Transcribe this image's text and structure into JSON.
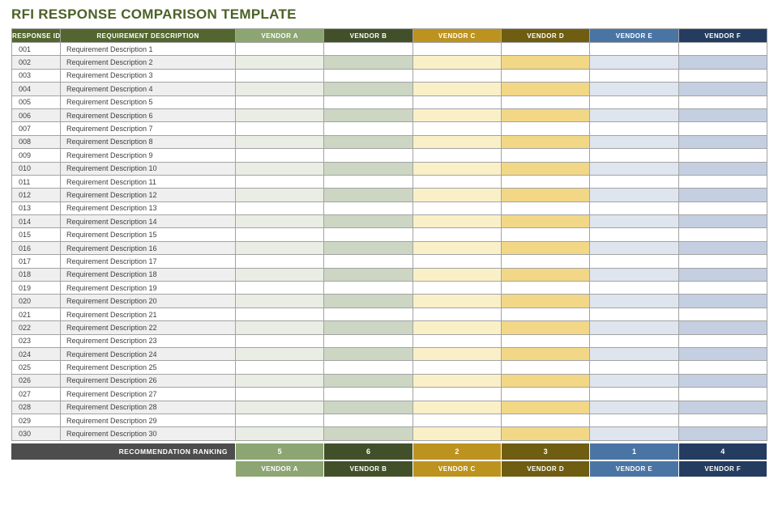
{
  "title": "RFI RESPONSE COMPARISON TEMPLATE",
  "colors": {
    "title": "#4C6128",
    "header_left": "#53662F",
    "grid_border": "#A3A3A3",
    "body_text": "#3F3F3F",
    "even_row_gray": "#EFEFEF",
    "gray_bar": "#4D4D4D",
    "page_background": "#FFFFFF"
  },
  "table": {
    "left_columns": [
      {
        "key": "response-id",
        "label": "RESPONSE ID"
      },
      {
        "key": "requirement-description",
        "label": "REQUIREMENT DESCRIPTION"
      }
    ],
    "vendors": [
      {
        "key": "vendor-a",
        "name": "VENDOR A",
        "header_color": "#8CA572",
        "row_tint": "#E9EDE4",
        "ranking": "5"
      },
      {
        "key": "vendor-b",
        "name": "VENDOR B",
        "header_color": "#42502A",
        "row_tint": "#CCD6C3",
        "ranking": "6"
      },
      {
        "key": "vendor-c",
        "name": "VENDOR C",
        "header_color": "#BD9320",
        "row_tint": "#FAF0C8",
        "ranking": "2"
      },
      {
        "key": "vendor-d",
        "name": "VENDOR D",
        "header_color": "#6F5D12",
        "row_tint": "#F2D787",
        "ranking": "3"
      },
      {
        "key": "vendor-e",
        "name": "VENDOR E",
        "header_color": "#4A74A4",
        "row_tint": "#DEE5EF",
        "ranking": "1"
      },
      {
        "key": "vendor-f",
        "name": "VENDOR F",
        "header_color": "#243C5F",
        "row_tint": "#C4CFE1",
        "ranking": "4"
      }
    ],
    "rows": [
      {
        "id": "001",
        "description": "Requirement Description 1"
      },
      {
        "id": "002",
        "description": "Requirement Description 2"
      },
      {
        "id": "003",
        "description": "Requirement Description 3"
      },
      {
        "id": "004",
        "description": "Requirement Description 4"
      },
      {
        "id": "005",
        "description": "Requirement Description 5"
      },
      {
        "id": "006",
        "description": "Requirement Description 6"
      },
      {
        "id": "007",
        "description": "Requirement Description 7"
      },
      {
        "id": "008",
        "description": "Requirement Description 8"
      },
      {
        "id": "009",
        "description": "Requirement Description 9"
      },
      {
        "id": "010",
        "description": "Requirement Description 10"
      },
      {
        "id": "011",
        "description": "Requirement Description 11"
      },
      {
        "id": "012",
        "description": "Requirement Description 12"
      },
      {
        "id": "013",
        "description": "Requirement Description 13"
      },
      {
        "id": "014",
        "description": "Requirement Description 14"
      },
      {
        "id": "015",
        "description": "Requirement Description 15"
      },
      {
        "id": "016",
        "description": "Requirement Description 16"
      },
      {
        "id": "017",
        "description": "Requirement Description 17"
      },
      {
        "id": "018",
        "description": "Requirement Description 18"
      },
      {
        "id": "019",
        "description": "Requirement Description 19"
      },
      {
        "id": "020",
        "description": "Requirement Description 20"
      },
      {
        "id": "021",
        "description": "Requirement Description 21"
      },
      {
        "id": "022",
        "description": "Requirement Description 22"
      },
      {
        "id": "023",
        "description": "Requirement Description 23"
      },
      {
        "id": "024",
        "description": "Requirement Description 24"
      },
      {
        "id": "025",
        "description": "Requirement Description 25"
      },
      {
        "id": "026",
        "description": "Requirement Description 26"
      },
      {
        "id": "027",
        "description": "Requirement Description 27"
      },
      {
        "id": "028",
        "description": "Requirement Description 28"
      },
      {
        "id": "029",
        "description": "Requirement Description 29"
      },
      {
        "id": "030",
        "description": "Requirement Description 30"
      }
    ]
  },
  "ranking": {
    "label": "RECOMMENDATION RANKING"
  }
}
